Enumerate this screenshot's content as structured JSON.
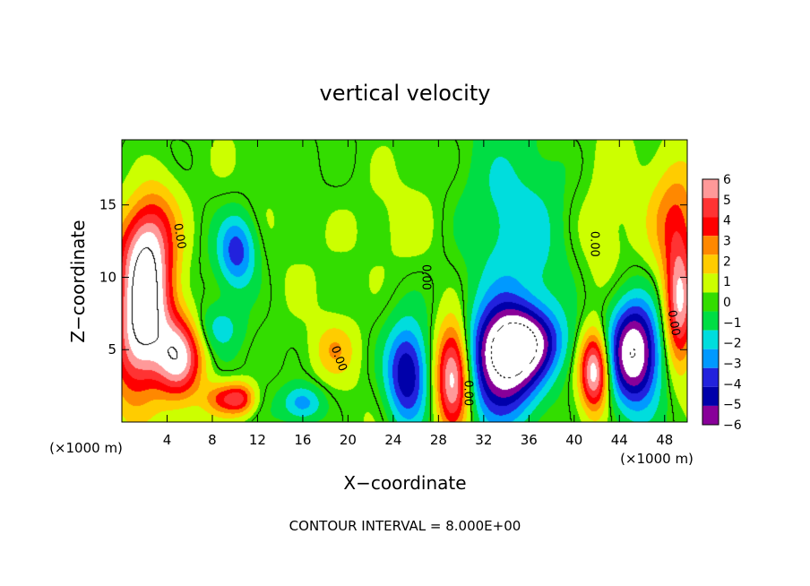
{
  "chart_data": {
    "type": "heatmap",
    "title": "vertical velocity",
    "xlabel": "X−coordinate",
    "ylabel": "Z−coordinate",
    "x_unit_label": "(×1000 m)",
    "y_unit_label": "(×1000 m)",
    "footer": "CONTOUR INTERVAL = 8.000E+00",
    "xlim": [
      0,
      50
    ],
    "ylim": [
      0,
      19.5
    ],
    "x_ticks": [
      4,
      8,
      12,
      16,
      20,
      24,
      28,
      32,
      36,
      40,
      44,
      48
    ],
    "x_tick_labels": [
      "4",
      "8",
      "12",
      "16",
      "20",
      "24",
      "28",
      "32",
      "36",
      "40",
      "44",
      "48"
    ],
    "y_ticks": [
      5,
      10,
      15
    ],
    "y_tick_labels": [
      "5",
      "10",
      "15"
    ],
    "colorbar": {
      "levels": [
        6,
        5,
        4,
        3,
        2,
        1,
        0,
        -1,
        -2,
        -3,
        -4,
        -5,
        -6
      ],
      "labels": [
        "6",
        "5",
        "4",
        "3",
        "2",
        "1",
        "0",
        "−1",
        "−2",
        "−3",
        "−4",
        "−5",
        "−6"
      ],
      "colors": [
        "#ff9999",
        "#ff3333",
        "#ff0000",
        "#ff8800",
        "#ffcc00",
        "#ccff00",
        "#33dd00",
        "#00dd44",
        "#00dddd",
        "#0099ff",
        "#2222dd",
        "#0000aa",
        "#880099"
      ]
    },
    "contour_labels": [
      {
        "text": "0.00",
        "x": 4.8,
        "z": 12.8,
        "angle": 80
      },
      {
        "text": "0.00",
        "x": 18.9,
        "z": 4.3,
        "angle": 70
      },
      {
        "text": "0.00",
        "x": 26.6,
        "z": 10.0,
        "angle": 90
      },
      {
        "text": "0.00",
        "x": 30.3,
        "z": 2.0,
        "angle": 90
      },
      {
        "text": "0.00",
        "x": 41.5,
        "z": 12.3,
        "angle": 90
      },
      {
        "text": "0.00",
        "x": 48.5,
        "z": 6.8,
        "angle": 80
      }
    ],
    "features": [
      {
        "x": 2.0,
        "z": 7.5,
        "sx": 1.6,
        "sz": 3.8,
        "rot": -12,
        "value": 8.5
      },
      {
        "x": 5.0,
        "z": 4.5,
        "sx": 1.5,
        "sz": 2.0,
        "rot": 0,
        "value": 6.8
      },
      {
        "x": 1.8,
        "z": 12.5,
        "sx": 1.6,
        "sz": 2.6,
        "rot": -20,
        "value": 4.5
      },
      {
        "x": 9.0,
        "z": 1.6,
        "sx": 1.2,
        "sz": 0.8,
        "rot": 0,
        "value": 3.5
      },
      {
        "x": 10.6,
        "z": 1.6,
        "sx": 0.9,
        "sz": 0.8,
        "rot": 0,
        "value": 3.5
      },
      {
        "x": 18.8,
        "z": 5.0,
        "sx": 1.3,
        "sz": 1.3,
        "rot": 0,
        "value": 2.0
      },
      {
        "x": 10.2,
        "z": 11.8,
        "sx": 1.2,
        "sz": 1.8,
        "rot": 0,
        "value": -4.2
      },
      {
        "x": 16.0,
        "z": 1.3,
        "sx": 1.3,
        "sz": 0.9,
        "rot": 0,
        "value": -3.2
      },
      {
        "x": 25.2,
        "z": 3.3,
        "sx": 1.3,
        "sz": 2.4,
        "rot": 0,
        "value": -5.6
      },
      {
        "x": 29.3,
        "z": 3.2,
        "sx": 1.1,
        "sz": 2.6,
        "rot": 0,
        "value": 8.0
      },
      {
        "x": 33.8,
        "z": 4.2,
        "sx": 2.3,
        "sz": 2.8,
        "rot": 0,
        "value": -8.0
      },
      {
        "x": 36.0,
        "z": 5.5,
        "sx": 2.2,
        "sz": 1.6,
        "rot": 0,
        "value": -4.5
      },
      {
        "x": 41.8,
        "z": 3.5,
        "sx": 0.9,
        "sz": 1.9,
        "rot": 0,
        "value": 7.5
      },
      {
        "x": 45.3,
        "z": 4.8,
        "sx": 1.6,
        "sz": 2.6,
        "rot": 0,
        "value": -8.0
      },
      {
        "x": 49.3,
        "z": 8.0,
        "sx": 0.9,
        "sz": 3.0,
        "rot": 0,
        "value": 6.0
      },
      {
        "x": 49.0,
        "z": 14.0,
        "sx": 1.6,
        "sz": 3.0,
        "rot": 0,
        "value": 3.0
      },
      {
        "x": 34.5,
        "z": 13.0,
        "sx": 3.5,
        "sz": 5.0,
        "rot": 20,
        "value": -2.2
      },
      {
        "x": 24.0,
        "z": 13.5,
        "sx": 3.5,
        "sz": 3.0,
        "rot": 0,
        "value": 0.8
      },
      {
        "x": 8.5,
        "z": 6.5,
        "sx": 1.5,
        "sz": 1.2,
        "rot": 0,
        "value": -2.0
      },
      {
        "x": 42.0,
        "z": 12.0,
        "sx": 2.0,
        "sz": 4.0,
        "rot": 0,
        "value": 1.2
      }
    ]
  }
}
